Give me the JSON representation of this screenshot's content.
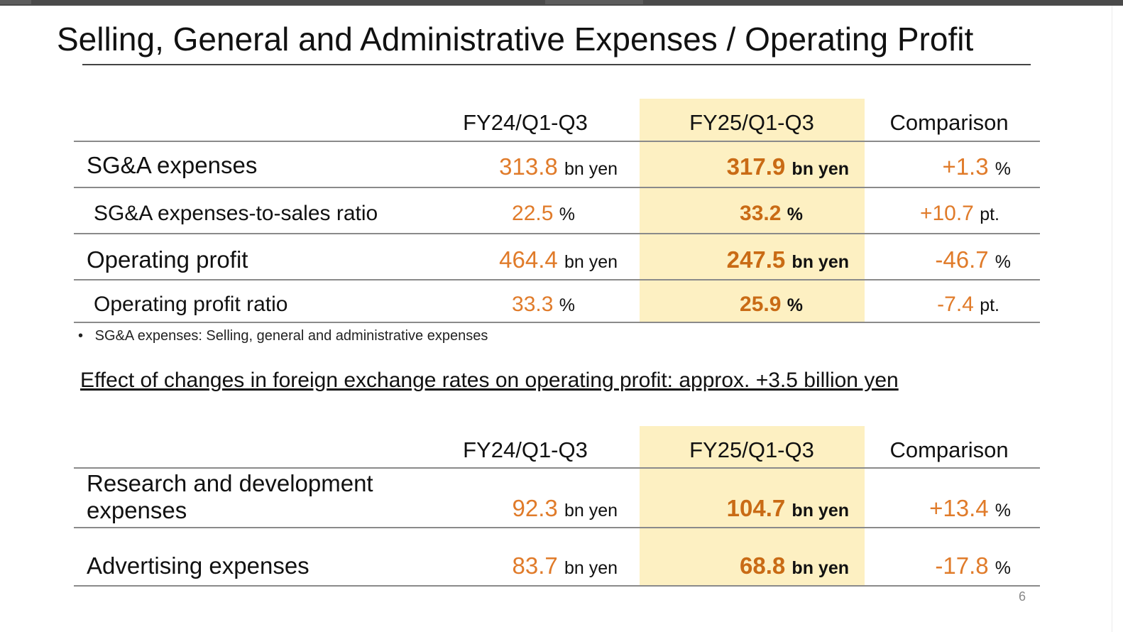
{
  "title": "Selling, General and Administrative Expenses / Operating Profit",
  "table1": {
    "headers": {
      "fy24": "FY24/Q1-Q3",
      "fy25": "FY25/Q1-Q3",
      "comparison": "Comparison"
    },
    "rows": [
      {
        "label": "SG&A expenses",
        "fy24_value": "313.8",
        "fy24_unit": "bn yen",
        "fy25_value": "317.9",
        "fy25_unit": "bn yen",
        "cmp_value": "+1.3",
        "cmp_unit": "%"
      },
      {
        "label": "SG&A expenses-to-sales ratio",
        "fy24_value": "22.5",
        "fy24_unit": "%",
        "fy25_value": "33.2",
        "fy25_unit": "%",
        "cmp_value": "+10.7",
        "cmp_unit": "pt."
      },
      {
        "label": "Operating profit",
        "fy24_value": "464.4",
        "fy24_unit": "bn yen",
        "fy25_value": "247.5",
        "fy25_unit": "bn yen",
        "cmp_value": "-46.7",
        "cmp_unit": "%"
      },
      {
        "label": "Operating profit ratio",
        "fy24_value": "33.3",
        "fy24_unit": "%",
        "fy25_value": "25.9",
        "fy25_unit": "%",
        "cmp_value": "-7.4",
        "cmp_unit": "pt."
      }
    ]
  },
  "footnote": "SG&A expenses: Selling, general and administrative expenses",
  "fx_effect": "Effect of changes in foreign exchange rates on operating profit: approx. +3.5 billion yen",
  "table2": {
    "headers": {
      "fy24": "FY24/Q1-Q3",
      "fy25": "FY25/Q1-Q3",
      "comparison": "Comparison"
    },
    "rows": [
      {
        "label_line1": "Research and development",
        "label_line2": "expenses",
        "fy24_value": "92.3",
        "fy24_unit": "bn yen",
        "fy25_value": "104.7",
        "fy25_unit": "bn yen",
        "cmp_value": "+13.4",
        "cmp_unit": "%"
      },
      {
        "label": "Advertising expenses",
        "fy24_value": "83.7",
        "fy24_unit": "bn yen",
        "fy25_value": "68.8",
        "fy25_unit": "bn yen",
        "cmp_value": "-17.8",
        "cmp_unit": "%"
      }
    ]
  },
  "page_number": "6",
  "colors": {
    "value_orange": "#e07b2a",
    "value_bold_orange": "#c96b15",
    "highlight_column": "#fdf0c2"
  }
}
